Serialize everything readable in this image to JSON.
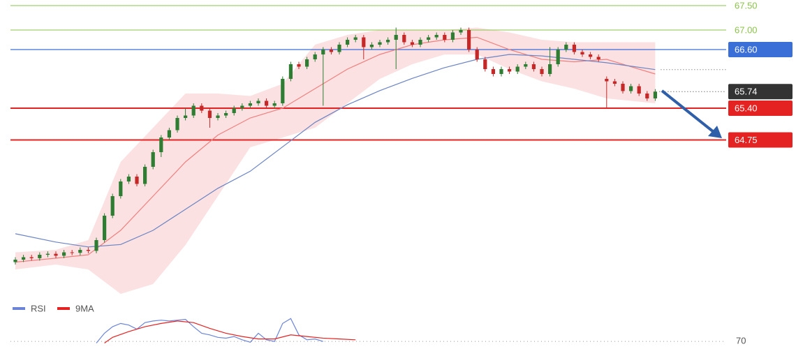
{
  "chart_data": {
    "type": "candlestick",
    "ylim": [
      61.6,
      67.6
    ],
    "up_color": "#2e7d32",
    "down_color": "#c62828",
    "open": [
      62.25,
      62.3,
      62.35,
      62.33,
      62.4,
      62.42,
      62.38,
      62.45,
      62.44,
      62.5,
      62.48,
      62.7,
      63.2,
      63.6,
      63.9,
      64.0,
      63.85,
      64.2,
      64.5,
      64.8,
      64.95,
      65.2,
      65.25,
      65.45,
      65.35,
      65.2,
      65.25,
      65.3,
      65.4,
      65.45,
      65.5,
      65.55,
      65.45,
      65.5,
      66.0,
      66.3,
      66.25,
      66.4,
      66.5,
      66.6,
      66.55,
      66.7,
      66.8,
      66.85,
      66.65,
      66.7,
      66.75,
      66.8,
      66.9,
      66.75,
      66.7,
      66.8,
      66.85,
      66.9,
      66.8,
      66.95,
      67.0,
      66.6,
      66.4,
      66.2,
      66.1,
      66.2,
      66.15,
      66.25,
      66.3,
      66.2,
      66.1,
      66.3,
      66.6,
      66.7,
      66.55,
      66.5,
      66.45,
      66.0,
      65.95,
      65.9,
      65.75,
      65.85,
      65.7,
      65.6
    ],
    "high": [
      62.35,
      62.4,
      62.4,
      62.45,
      62.47,
      62.47,
      62.5,
      62.5,
      62.55,
      62.55,
      62.75,
      63.25,
      63.65,
      63.95,
      64.05,
      64.05,
      64.25,
      64.55,
      64.85,
      65.0,
      65.25,
      65.4,
      65.5,
      65.5,
      65.4,
      65.3,
      65.35,
      65.45,
      65.5,
      65.55,
      65.6,
      65.6,
      65.55,
      66.05,
      66.35,
      66.35,
      66.45,
      66.55,
      66.65,
      66.65,
      66.75,
      66.85,
      66.9,
      66.9,
      66.75,
      66.8,
      66.85,
      67.05,
      66.95,
      66.8,
      66.85,
      66.9,
      66.95,
      66.95,
      67.0,
      67.05,
      67.05,
      66.65,
      66.45,
      66.25,
      66.25,
      66.25,
      66.3,
      66.35,
      66.35,
      66.25,
      66.65,
      66.65,
      66.75,
      66.75,
      66.6,
      66.55,
      66.5,
      66.05,
      66.0,
      65.95,
      65.9,
      65.9,
      65.75,
      65.79
    ],
    "low": [
      62.2,
      62.25,
      62.28,
      62.28,
      62.35,
      62.33,
      62.33,
      62.39,
      62.39,
      62.43,
      62.43,
      62.65,
      63.15,
      63.55,
      63.85,
      63.8,
      63.8,
      64.15,
      64.4,
      64.75,
      64.9,
      65.15,
      65.2,
      65.3,
      65.0,
      65.15,
      65.2,
      65.25,
      65.35,
      65.4,
      65.45,
      65.4,
      65.4,
      65.45,
      65.95,
      66.2,
      66.2,
      66.35,
      65.45,
      66.5,
      66.5,
      66.65,
      66.75,
      66.4,
      66.6,
      66.65,
      66.7,
      66.2,
      66.7,
      66.65,
      66.65,
      66.75,
      66.8,
      66.75,
      66.75,
      66.9,
      66.55,
      66.35,
      66.15,
      66.05,
      66.05,
      66.1,
      66.1,
      66.2,
      66.15,
      66.05,
      66.05,
      66.25,
      66.55,
      66.5,
      66.45,
      66.4,
      66.35,
      65.4,
      65.85,
      65.7,
      65.7,
      65.65,
      65.55,
      65.55
    ],
    "close": [
      62.3,
      62.35,
      62.33,
      62.4,
      62.42,
      62.38,
      62.45,
      62.44,
      62.5,
      62.48,
      62.7,
      63.2,
      63.6,
      63.9,
      64.0,
      63.85,
      64.2,
      64.5,
      64.8,
      64.95,
      65.2,
      65.25,
      65.45,
      65.35,
      65.2,
      65.25,
      65.3,
      65.4,
      65.45,
      65.5,
      65.55,
      65.45,
      65.5,
      66.0,
      66.3,
      66.25,
      66.4,
      66.5,
      66.6,
      66.55,
      66.7,
      66.8,
      66.85,
      66.65,
      66.7,
      66.75,
      66.8,
      66.9,
      66.75,
      66.7,
      66.8,
      66.85,
      66.9,
      66.8,
      66.95,
      67.0,
      66.6,
      66.4,
      66.2,
      66.1,
      66.2,
      66.15,
      66.25,
      66.3,
      66.2,
      66.1,
      66.3,
      66.6,
      66.7,
      66.55,
      66.5,
      66.45,
      66.4,
      65.95,
      65.9,
      65.75,
      65.85,
      65.7,
      65.6,
      65.74
    ],
    "band": {
      "color": "#f8c8c8",
      "x": [
        0,
        5,
        9,
        13,
        17,
        21,
        25,
        29,
        33,
        37,
        41,
        45,
        49,
        53,
        57,
        61,
        65,
        69,
        73,
        79
      ],
      "upper": [
        62.45,
        62.5,
        62.7,
        64.3,
        65.0,
        65.7,
        65.7,
        65.65,
        65.9,
        66.7,
        66.9,
        67.0,
        67.0,
        67.0,
        67.05,
        66.95,
        66.8,
        66.75,
        66.75,
        66.75
      ],
      "lower": [
        62.1,
        62.2,
        62.1,
        61.6,
        61.8,
        62.6,
        63.6,
        64.6,
        64.8,
        65.0,
        65.5,
        66.0,
        66.3,
        66.5,
        66.5,
        66.2,
        65.95,
        65.8,
        65.6,
        65.5
      ]
    },
    "lines": [
      {
        "color": "#f08080",
        "x": [
          0,
          5,
          9,
          13,
          17,
          21,
          25,
          29,
          33,
          37,
          41,
          45,
          49,
          53,
          57,
          61,
          65,
          69,
          73,
          79
        ],
        "values": [
          62.25,
          62.33,
          62.4,
          62.9,
          63.6,
          64.3,
          64.85,
          65.2,
          65.4,
          65.8,
          66.2,
          66.5,
          66.7,
          66.8,
          66.85,
          66.6,
          66.4,
          66.35,
          66.4,
          66.1
        ]
      },
      {
        "color": "#6b84c4",
        "x": [
          0,
          5,
          9,
          13,
          17,
          21,
          25,
          29,
          33,
          37,
          41,
          45,
          49,
          53,
          57,
          61,
          65,
          69,
          73,
          79
        ],
        "values": [
          62.83,
          62.66,
          62.56,
          62.61,
          62.9,
          63.33,
          63.76,
          64.11,
          64.61,
          65.11,
          65.47,
          65.76,
          66.01,
          66.23,
          66.4,
          66.5,
          66.47,
          66.4,
          66.33,
          66.19
        ]
      }
    ],
    "levels": [
      {
        "value": 67.5,
        "label": "67.50",
        "color": "#8bc34a",
        "boxed": false,
        "width": 1
      },
      {
        "value": 67.0,
        "label": "67.00",
        "color": "#8bc34a",
        "boxed": false,
        "width": 1
      },
      {
        "value": 66.6,
        "label": "66.60",
        "color": "#3a6fd8",
        "boxed": true,
        "width": 1.2
      },
      {
        "value": 65.4,
        "label": "65.40",
        "color": "#e52222",
        "boxed": true,
        "width": 2
      },
      {
        "value": 64.75,
        "label": "64.75",
        "color": "#e52222",
        "boxed": true,
        "width": 2
      }
    ],
    "last": 65.74,
    "last_color": "#333333",
    "rsi": {
      "ylim": [
        65,
        100
      ],
      "yticks": [
        70
      ],
      "series": [
        {
          "name": "RSI",
          "color": "#6b84d8",
          "x": [
            10,
            11,
            12,
            13,
            14,
            15,
            16,
            17,
            18,
            19,
            20,
            21,
            22,
            23,
            24,
            25,
            26,
            27,
            28,
            29,
            30,
            31,
            32,
            33,
            34,
            35,
            36,
            37,
            38
          ],
          "values": [
            68,
            80,
            88,
            92,
            90,
            85,
            93,
            95,
            96,
            95,
            96,
            97,
            88,
            80,
            78,
            75,
            74,
            76,
            72,
            69,
            80,
            72,
            70,
            92,
            98,
            78,
            72,
            73,
            70
          ]
        },
        {
          "name": "9MA",
          "color": "#e52222",
          "x": [
            11,
            12,
            14,
            16,
            18,
            20,
            22,
            24,
            26,
            28,
            30,
            32,
            34,
            36,
            38,
            40,
            42
          ],
          "values": [
            68,
            75,
            82,
            88,
            92,
            95,
            93,
            86,
            80,
            76,
            73,
            73,
            78,
            76,
            74,
            73,
            72
          ]
        }
      ]
    }
  }
}
